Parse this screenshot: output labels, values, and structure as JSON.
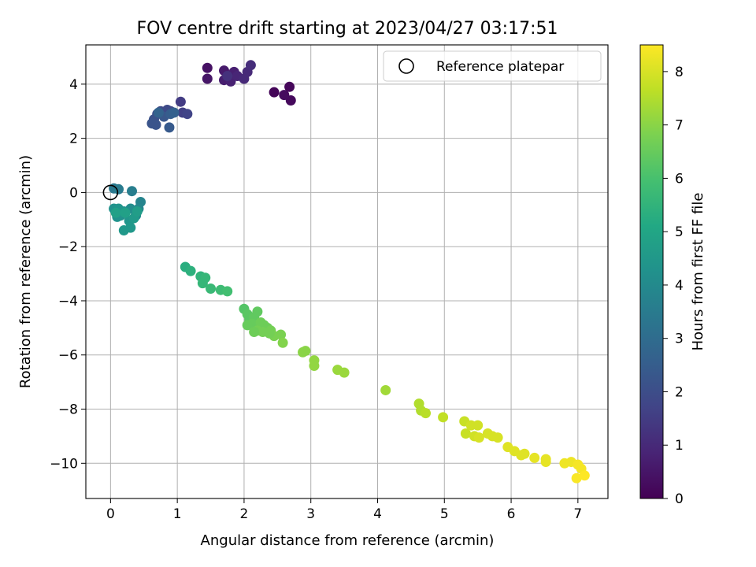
{
  "chart_data": {
    "type": "scatter",
    "title": "FOV centre drift starting at 2023/04/27 03:17:51",
    "xlabel": "Angular distance from reference (arcmin)",
    "ylabel": "Rotation from reference (arcmin)",
    "xlim": [
      -0.37,
      7.45
    ],
    "ylim": [
      -11.3,
      5.45
    ],
    "xticks": [
      0,
      1,
      2,
      3,
      4,
      5,
      6,
      7
    ],
    "xtick_labels": [
      "0",
      "1",
      "2",
      "3",
      "4",
      "5",
      "6",
      "7"
    ],
    "yticks": [
      4,
      2,
      0,
      -2,
      -4,
      -6,
      -8,
      -10
    ],
    "ytick_labels": [
      "4",
      "2",
      "0",
      "−2",
      "−4",
      "−6",
      "−8",
      "−10"
    ],
    "grid": true,
    "legend": {
      "position": "upper right",
      "entries": [
        "Reference platepar"
      ]
    },
    "reference_point": {
      "x": 0,
      "y": 0
    },
    "colorbar": {
      "label": "Hours from first FF file",
      "colormap": "viridis",
      "range": [
        0,
        8.5
      ],
      "ticks": [
        0,
        1,
        2,
        3,
        4,
        5,
        6,
        7,
        8
      ],
      "tick_labels": [
        "0",
        "1",
        "2",
        "3",
        "4",
        "5",
        "6",
        "7",
        "8"
      ]
    },
    "points": [
      [
        2.45,
        3.7,
        0.1
      ],
      [
        2.68,
        3.9,
        0.15
      ],
      [
        2.7,
        3.4,
        0.2
      ],
      [
        2.6,
        3.6,
        0.25
      ],
      [
        1.45,
        4.6,
        0.4
      ],
      [
        1.45,
        4.2,
        0.5
      ],
      [
        1.7,
        4.5,
        0.6
      ],
      [
        1.7,
        4.15,
        0.7
      ],
      [
        1.85,
        4.45,
        0.75
      ],
      [
        1.8,
        4.1,
        0.8
      ],
      [
        1.9,
        4.3,
        0.9
      ],
      [
        2.0,
        4.2,
        1.0
      ],
      [
        2.05,
        4.45,
        1.0
      ],
      [
        2.1,
        4.7,
        1.1
      ],
      [
        1.75,
        4.3,
        1.2
      ],
      [
        1.05,
        3.35,
        1.5
      ],
      [
        1.08,
        2.95,
        1.6
      ],
      [
        1.15,
        2.9,
        1.7
      ],
      [
        0.9,
        3.0,
        1.8
      ],
      [
        0.85,
        3.05,
        1.9
      ],
      [
        0.75,
        3.0,
        1.9
      ],
      [
        0.7,
        2.9,
        2.0
      ],
      [
        0.65,
        2.7,
        2.1
      ],
      [
        0.62,
        2.55,
        2.2
      ],
      [
        0.68,
        2.5,
        2.2
      ],
      [
        0.8,
        2.8,
        2.3
      ],
      [
        0.88,
        2.4,
        2.4
      ],
      [
        0.9,
        2.9,
        2.5
      ],
      [
        0.95,
        2.95,
        2.6
      ],
      [
        0.72,
        2.95,
        2.7
      ],
      [
        0.05,
        0.15,
        3.4
      ],
      [
        0.12,
        0.12,
        3.5
      ],
      [
        0.32,
        0.05,
        3.6
      ],
      [
        0.45,
        -0.35,
        3.8
      ],
      [
        0.42,
        -0.6,
        3.9
      ],
      [
        0.38,
        -0.85,
        4.0
      ],
      [
        0.3,
        -0.6,
        4.1
      ],
      [
        0.2,
        -0.7,
        4.2
      ],
      [
        0.15,
        -0.85,
        4.2
      ],
      [
        0.1,
        -0.9,
        4.3
      ],
      [
        0.05,
        -0.6,
        4.3
      ],
      [
        0.12,
        -0.6,
        4.4
      ],
      [
        0.28,
        -1.05,
        4.4
      ],
      [
        0.3,
        -1.3,
        4.5
      ],
      [
        0.2,
        -1.4,
        4.5
      ],
      [
        0.35,
        -0.95,
        4.6
      ],
      [
        0.4,
        -0.7,
        4.7
      ],
      [
        0.22,
        -0.75,
        4.8
      ],
      [
        0.08,
        -0.75,
        4.8
      ],
      [
        1.12,
        -2.75,
        5.3
      ],
      [
        1.2,
        -2.9,
        5.4
      ],
      [
        1.35,
        -3.1,
        5.5
      ],
      [
        1.42,
        -3.15,
        5.6
      ],
      [
        1.38,
        -3.35,
        5.6
      ],
      [
        1.5,
        -3.55,
        5.7
      ],
      [
        1.65,
        -3.6,
        5.8
      ],
      [
        1.75,
        -3.65,
        5.9
      ],
      [
        2.0,
        -4.3,
        6.2
      ],
      [
        2.05,
        -4.5,
        6.3
      ],
      [
        2.08,
        -4.7,
        6.3
      ],
      [
        2.15,
        -4.6,
        6.4
      ],
      [
        2.2,
        -4.4,
        6.4
      ],
      [
        2.12,
        -4.85,
        6.5
      ],
      [
        2.18,
        -5.0,
        6.5
      ],
      [
        2.25,
        -4.8,
        6.6
      ],
      [
        2.3,
        -4.9,
        6.6
      ],
      [
        2.35,
        -5.0,
        6.6
      ],
      [
        2.4,
        -5.1,
        6.7
      ],
      [
        2.2,
        -5.1,
        6.7
      ],
      [
        2.28,
        -5.15,
        6.7
      ],
      [
        2.45,
        -5.3,
        6.8
      ],
      [
        2.55,
        -5.25,
        6.8
      ],
      [
        2.58,
        -5.55,
        6.9
      ],
      [
        2.05,
        -4.9,
        6.5
      ],
      [
        2.15,
        -5.15,
        6.6
      ],
      [
        2.38,
        -5.2,
        6.7
      ],
      [
        2.88,
        -5.9,
        7.0
      ],
      [
        2.92,
        -5.85,
        7.0
      ],
      [
        3.05,
        -6.2,
        7.1
      ],
      [
        3.05,
        -6.4,
        7.1
      ],
      [
        3.4,
        -6.55,
        7.2
      ],
      [
        3.5,
        -6.65,
        7.2
      ],
      [
        4.12,
        -7.3,
        7.3
      ],
      [
        4.62,
        -7.8,
        7.5
      ],
      [
        4.65,
        -8.05,
        7.5
      ],
      [
        4.72,
        -8.15,
        7.6
      ],
      [
        4.98,
        -8.3,
        7.7
      ],
      [
        5.3,
        -8.45,
        7.8
      ],
      [
        5.32,
        -8.9,
        7.8
      ],
      [
        5.4,
        -8.6,
        7.9
      ],
      [
        5.45,
        -9.0,
        7.9
      ],
      [
        5.5,
        -8.6,
        7.9
      ],
      [
        5.52,
        -9.05,
        8.0
      ],
      [
        5.65,
        -8.9,
        8.0
      ],
      [
        5.72,
        -9.0,
        8.0
      ],
      [
        5.8,
        -9.05,
        8.0
      ],
      [
        5.95,
        -9.4,
        8.1
      ],
      [
        6.05,
        -9.55,
        8.1
      ],
      [
        6.15,
        -9.7,
        8.1
      ],
      [
        6.2,
        -9.65,
        8.1
      ],
      [
        6.35,
        -9.8,
        8.2
      ],
      [
        6.52,
        -9.85,
        8.2
      ],
      [
        6.52,
        -9.95,
        8.2
      ],
      [
        6.8,
        -10.0,
        8.3
      ],
      [
        6.9,
        -9.95,
        8.3
      ],
      [
        7.0,
        -10.05,
        8.4
      ],
      [
        7.05,
        -10.2,
        8.4
      ],
      [
        6.98,
        -10.55,
        8.45
      ],
      [
        7.1,
        -10.45,
        8.5
      ]
    ]
  }
}
